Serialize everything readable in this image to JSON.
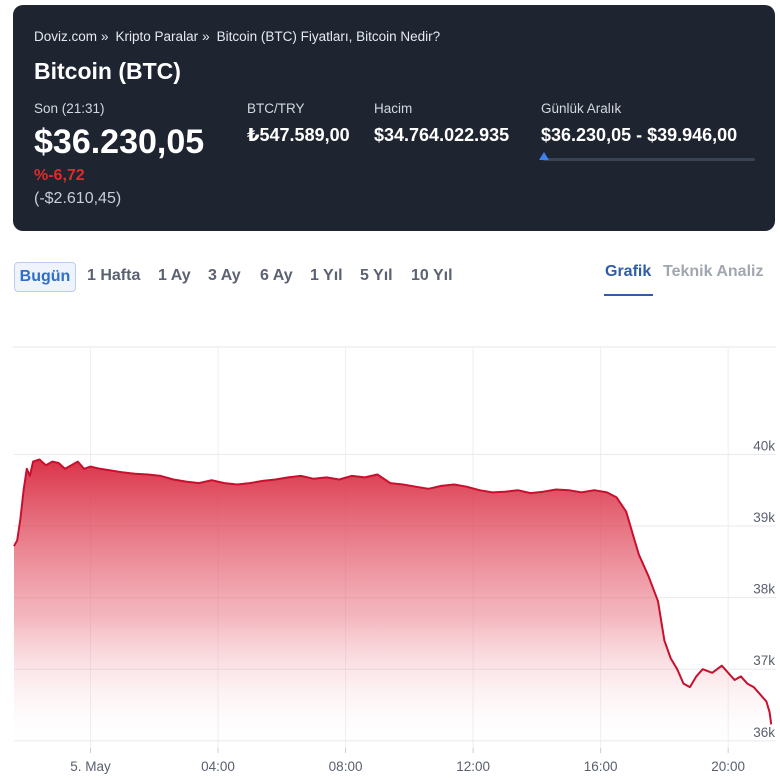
{
  "breadcrumb": [
    {
      "label": "Doviz.com"
    },
    {
      "label": "Kripto Paralar"
    },
    {
      "label": "Bitcoin (BTC) Fiyatları, Bitcoin Nedir?"
    }
  ],
  "breadcrumb_separator": "»",
  "title": "Bitcoin (BTC)",
  "stats": {
    "last_label": "Son (21:31)",
    "last_value": "$36.230,05",
    "change_pct": "%-6,72",
    "change_abs": "(-$2.610,45)",
    "try_label": "BTC/TRY",
    "try_value": "₺547.589,00",
    "volume_label": "Hacim",
    "volume_value": "$34.764.022.935",
    "range_label": "Günlük Aralık",
    "range_value": "$36.230,05 - $39.946,00",
    "range_position": 0.0
  },
  "periods": [
    "Bugün",
    "1 Hafta",
    "1 Ay",
    "3 Ay",
    "6 Ay",
    "1 Yıl",
    "5 Yıl",
    "10 Yıl"
  ],
  "active_period": "Bugün",
  "view_tabs": [
    "Grafik",
    "Teknik Analiz"
  ],
  "active_view": "Grafik",
  "colors": {
    "header_bg": "#1e2430",
    "accent": "#2e5ea8",
    "negative": "#e02b2b",
    "line": "#c8102e",
    "fill_top": "#d8293f"
  },
  "chart_data": {
    "type": "area",
    "x_unit": "hours",
    "x_ticks": [
      {
        "label": "5. May",
        "x": 0
      },
      {
        "label": "04:00",
        "x": 4
      },
      {
        "label": "08:00",
        "x": 8
      },
      {
        "label": "12:00",
        "x": 12
      },
      {
        "label": "16:00",
        "x": 16
      },
      {
        "label": "20:00",
        "x": 20
      }
    ],
    "y_ticks": [
      {
        "label": "36k",
        "y": 36000
      },
      {
        "label": "37k",
        "y": 37000
      },
      {
        "label": "38k",
        "y": 38000
      },
      {
        "label": "39k",
        "y": 39000
      },
      {
        "label": "40k",
        "y": 40000
      }
    ],
    "xlim": [
      -2.4,
      21.5
    ],
    "ylim": [
      35900,
      40900
    ],
    "grid": true,
    "series": [
      {
        "x": [
          -2.4,
          -2.3,
          -2.2,
          -2.1,
          -2.0,
          -1.9,
          -1.8,
          -1.6,
          -1.4,
          -1.2,
          -1.0,
          -0.8,
          -0.6,
          -0.4,
          -0.2,
          0.0,
          0.3,
          0.6,
          1.0,
          1.4,
          1.8,
          2.2,
          2.6,
          3.0,
          3.4,
          3.8,
          4.2,
          4.6,
          5.0,
          5.4,
          5.8,
          6.2,
          6.6,
          7.0,
          7.4,
          7.8,
          8.2,
          8.6,
          9.0,
          9.4,
          9.8,
          10.2,
          10.6,
          11.0,
          11.4,
          11.8,
          12.2,
          12.6,
          13.0,
          13.4,
          13.8,
          14.2,
          14.6,
          15.0,
          15.4,
          15.8,
          16.2,
          16.5,
          16.8,
          17.0,
          17.2,
          17.5,
          17.8,
          18.0,
          18.2,
          18.4,
          18.6,
          18.8,
          19.0,
          19.2,
          19.5,
          19.8,
          20.0,
          20.2,
          20.4,
          20.6,
          20.8,
          21.0,
          21.2,
          21.3,
          21.35
        ],
        "y": [
          38720,
          38800,
          39100,
          39500,
          39800,
          39700,
          39900,
          39930,
          39850,
          39900,
          39880,
          39800,
          39850,
          39900,
          39800,
          39830,
          39800,
          39780,
          39750,
          39730,
          39720,
          39700,
          39650,
          39620,
          39600,
          39640,
          39600,
          39580,
          39600,
          39630,
          39650,
          39680,
          39700,
          39660,
          39680,
          39650,
          39700,
          39680,
          39720,
          39600,
          39580,
          39550,
          39520,
          39560,
          39580,
          39550,
          39500,
          39470,
          39480,
          39500,
          39460,
          39480,
          39510,
          39500,
          39470,
          39500,
          39470,
          39400,
          39200,
          38900,
          38600,
          38300,
          37950,
          37400,
          37150,
          37000,
          36800,
          36750,
          36900,
          37000,
          36950,
          37050,
          36950,
          36850,
          36900,
          36800,
          36750,
          36650,
          36550,
          36400,
          36230
        ]
      }
    ]
  }
}
